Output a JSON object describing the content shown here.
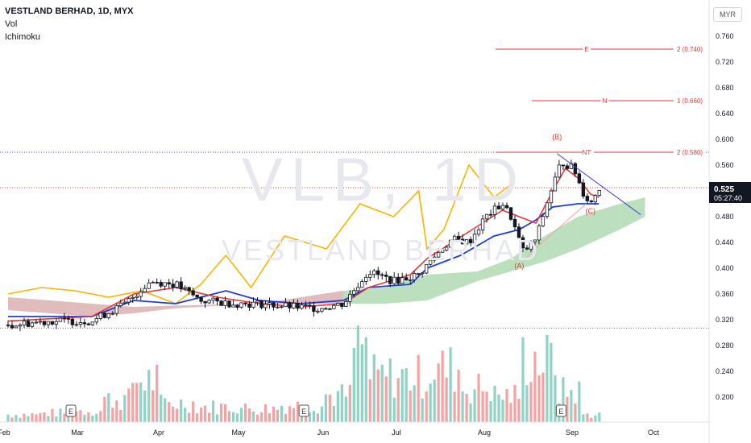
{
  "header": {
    "title": "VESTLAND BERHAD, 1D, MYX",
    "vol_label": "Vol",
    "ichimoku_label": "Ichimoku"
  },
  "watermark": {
    "symbol": "VLB, 1D",
    "name": "VESTLAND BERHAD"
  },
  "currency": "MYR",
  "last_price": {
    "value": "0.525",
    "countdown": "05:27:40"
  },
  "colors": {
    "up": "#089981",
    "down": "#f23645",
    "conversion": "#e53935",
    "base": "#1e3dd6",
    "lagging": "#f7b500",
    "cloud_bull": "#a5d6a7",
    "cloud_bear": "#d5a6a6",
    "vol_up": "#8fd3c5",
    "vol_down": "#f2a3a3",
    "fib": "#e53935",
    "trend": "#3a3ae0"
  },
  "chart_data": [
    {
      "type": "candlestick",
      "title": "VESTLAND BERHAD, 1D, MYX",
      "x_ticks": [
        "Feb",
        "Mar",
        "Apr",
        "May",
        "Jun",
        "Jul",
        "Aug",
        "Sep",
        "Oct"
      ],
      "y_ticks": [
        "0.760",
        "0.720",
        "0.680",
        "0.640",
        "0.600",
        "0.560",
        "0.525",
        "0.480",
        "0.440",
        "0.400",
        "0.360",
        "0.320",
        "0.280",
        "0.240",
        "0.200"
      ],
      "ylim": [
        0.15,
        0.79
      ],
      "grid": false,
      "price_series": [
        {
          "x": 0.0,
          "close": 0.312
        },
        {
          "x": 0.5,
          "close": 0.318
        },
        {
          "x": 1.0,
          "close": 0.318
        },
        {
          "x": 1.4,
          "close": 0.345
        },
        {
          "x": 1.7,
          "close": 0.38
        },
        {
          "x": 2.0,
          "close": 0.375
        },
        {
          "x": 2.3,
          "close": 0.35
        },
        {
          "x": 2.7,
          "close": 0.345
        },
        {
          "x": 3.0,
          "close": 0.345
        },
        {
          "x": 3.4,
          "close": 0.34
        },
        {
          "x": 3.7,
          "close": 0.338
        },
        {
          "x": 4.0,
          "close": 0.345
        },
        {
          "x": 4.3,
          "close": 0.395
        },
        {
          "x": 4.6,
          "close": 0.38
        },
        {
          "x": 4.9,
          "close": 0.39
        },
        {
          "x": 5.1,
          "close": 0.42
        },
        {
          "x": 5.3,
          "close": 0.445
        },
        {
          "x": 5.5,
          "close": 0.44
        },
        {
          "x": 5.7,
          "close": 0.48
        },
        {
          "x": 5.9,
          "close": 0.5
        },
        {
          "x": 6.0,
          "close": 0.48
        },
        {
          "x": 6.15,
          "close": 0.425
        },
        {
          "x": 6.3,
          "close": 0.445
        },
        {
          "x": 6.45,
          "close": 0.51
        },
        {
          "x": 6.6,
          "close": 0.565
        },
        {
          "x": 6.75,
          "close": 0.555
        },
        {
          "x": 6.85,
          "close": 0.52
        },
        {
          "x": 6.95,
          "close": 0.5
        },
        {
          "x": 7.05,
          "close": 0.525
        }
      ],
      "ichimoku": {
        "conversion_line": [
          {
            "x": 0.0,
            "y": 0.318
          },
          {
            "x": 1.0,
            "y": 0.325
          },
          {
            "x": 1.5,
            "y": 0.36
          },
          {
            "x": 2.0,
            "y": 0.37
          },
          {
            "x": 2.5,
            "y": 0.355
          },
          {
            "x": 3.0,
            "y": 0.345
          },
          {
            "x": 3.5,
            "y": 0.34
          },
          {
            "x": 4.0,
            "y": 0.345
          },
          {
            "x": 4.3,
            "y": 0.37
          },
          {
            "x": 4.8,
            "y": 0.39
          },
          {
            "x": 5.0,
            "y": 0.415
          },
          {
            "x": 5.3,
            "y": 0.44
          },
          {
            "x": 5.6,
            "y": 0.465
          },
          {
            "x": 5.9,
            "y": 0.49
          },
          {
            "x": 6.1,
            "y": 0.48
          },
          {
            "x": 6.3,
            "y": 0.47
          },
          {
            "x": 6.5,
            "y": 0.52
          },
          {
            "x": 6.65,
            "y": 0.555
          },
          {
            "x": 6.8,
            "y": 0.54
          },
          {
            "x": 6.95,
            "y": 0.515
          },
          {
            "x": 7.05,
            "y": 0.51
          }
        ],
        "base_line": [
          {
            "x": 0.0,
            "y": 0.325
          },
          {
            "x": 1.0,
            "y": 0.325
          },
          {
            "x": 1.5,
            "y": 0.35
          },
          {
            "x": 2.0,
            "y": 0.345
          },
          {
            "x": 2.6,
            "y": 0.365
          },
          {
            "x": 3.0,
            "y": 0.35
          },
          {
            "x": 3.5,
            "y": 0.345
          },
          {
            "x": 4.0,
            "y": 0.35
          },
          {
            "x": 4.3,
            "y": 0.37
          },
          {
            "x": 4.8,
            "y": 0.375
          },
          {
            "x": 5.0,
            "y": 0.4
          },
          {
            "x": 5.4,
            "y": 0.42
          },
          {
            "x": 5.8,
            "y": 0.45
          },
          {
            "x": 6.1,
            "y": 0.46
          },
          {
            "x": 6.3,
            "y": 0.475
          },
          {
            "x": 6.5,
            "y": 0.495
          },
          {
            "x": 6.8,
            "y": 0.5
          },
          {
            "x": 7.05,
            "y": 0.5
          }
        ],
        "lagging_span": [
          {
            "x": 0.0,
            "y": 0.36
          },
          {
            "x": 0.4,
            "y": 0.37
          },
          {
            "x": 0.8,
            "y": 0.365
          },
          {
            "x": 1.2,
            "y": 0.355
          },
          {
            "x": 1.6,
            "y": 0.365
          },
          {
            "x": 2.0,
            "y": 0.345
          },
          {
            "x": 2.3,
            "y": 0.375
          },
          {
            "x": 2.6,
            "y": 0.42
          },
          {
            "x": 2.9,
            "y": 0.37
          },
          {
            "x": 3.3,
            "y": 0.45
          },
          {
            "x": 3.8,
            "y": 0.43
          },
          {
            "x": 4.2,
            "y": 0.5
          },
          {
            "x": 4.6,
            "y": 0.48
          },
          {
            "x": 4.9,
            "y": 0.52
          },
          {
            "x": 5.0,
            "y": 0.43
          },
          {
            "x": 5.2,
            "y": 0.46
          },
          {
            "x": 5.5,
            "y": 0.56
          },
          {
            "x": 5.8,
            "y": 0.51
          },
          {
            "x": 6.0,
            "y": 0.53
          }
        ],
        "cloud": [
          {
            "x": 0.0,
            "a": 0.355,
            "b": 0.335
          },
          {
            "x": 1.0,
            "a": 0.345,
            "b": 0.325
          },
          {
            "x": 1.5,
            "a": 0.34,
            "b": 0.33
          },
          {
            "x": 2.0,
            "a": 0.342,
            "b": 0.338
          },
          {
            "x": 3.0,
            "a": 0.345,
            "b": 0.345
          },
          {
            "x": 4.0,
            "a": 0.365,
            "b": 0.345
          },
          {
            "x": 4.5,
            "a": 0.37,
            "b": 0.345
          },
          {
            "x": 5.0,
            "a": 0.39,
            "b": 0.35
          },
          {
            "x": 5.6,
            "a": 0.395,
            "b": 0.38
          },
          {
            "x": 6.0,
            "a": 0.415,
            "b": 0.395
          },
          {
            "x": 6.4,
            "a": 0.45,
            "b": 0.41
          },
          {
            "x": 6.8,
            "a": 0.48,
            "b": 0.43
          },
          {
            "x": 7.3,
            "a": 0.5,
            "b": 0.46
          },
          {
            "x": 7.6,
            "a": 0.51,
            "b": 0.48
          }
        ]
      },
      "fib_levels": [
        {
          "label": "E",
          "value_label": "2 (0.740)",
          "y": 0.74
        },
        {
          "label": "N",
          "value_label": "1 (0.660)",
          "y": 0.66
        },
        {
          "label": "NT",
          "value_label": "2 (0.580)",
          "y": 0.58
        }
      ],
      "wave_labels": [
        {
          "label": "(A)",
          "x": 6.1,
          "y": 0.4
        },
        {
          "label": "(B)",
          "x": 6.55,
          "y": 0.6
        },
        {
          "label": "(C)",
          "x": 6.95,
          "y": 0.485
        }
      ],
      "horizontal_lines": [
        0.58,
        0.525,
        0.307
      ],
      "trendline": {
        "x1": 6.55,
        "y1": 0.578,
        "x2": 7.55,
        "y2": 0.483
      },
      "volume": [
        {
          "x": 0.2,
          "v": 0.1,
          "up": true
        },
        {
          "x": 0.6,
          "v": 0.12,
          "up": false
        },
        {
          "x": 1.0,
          "v": 0.15,
          "up": true
        },
        {
          "x": 1.3,
          "v": 0.3,
          "up": true
        },
        {
          "x": 1.6,
          "v": 0.55,
          "up": false
        },
        {
          "x": 2.0,
          "v": 0.25,
          "up": true
        },
        {
          "x": 2.5,
          "v": 0.2,
          "up": false
        },
        {
          "x": 3.0,
          "v": 0.18,
          "up": true
        },
        {
          "x": 3.5,
          "v": 0.22,
          "up": false
        },
        {
          "x": 4.0,
          "v": 0.35,
          "up": true
        },
        {
          "x": 4.2,
          "v": 0.98,
          "up": true
        },
        {
          "x": 4.4,
          "v": 0.6,
          "up": true
        },
        {
          "x": 4.8,
          "v": 0.6,
          "up": false
        },
        {
          "x": 5.2,
          "v": 0.7,
          "up": true
        },
        {
          "x": 5.6,
          "v": 0.45,
          "up": true
        },
        {
          "x": 6.0,
          "v": 0.35,
          "up": false
        },
        {
          "x": 6.2,
          "v": 0.85,
          "up": false
        },
        {
          "x": 6.4,
          "v": 0.8,
          "up": true
        },
        {
          "x": 6.7,
          "v": 0.4,
          "up": true
        },
        {
          "x": 7.0,
          "v": 0.1,
          "up": true
        }
      ],
      "earnings_markers": [
        "E",
        "E",
        "E"
      ]
    }
  ]
}
